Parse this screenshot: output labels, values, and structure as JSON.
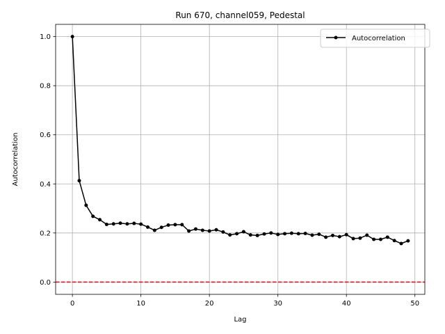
{
  "chart_data": {
    "type": "line",
    "title": "Run 670, channel059, Pedestal",
    "xlabel": "Lag",
    "ylabel": "Autocorrelation",
    "xlim": [
      -2.45,
      51.45
    ],
    "ylim": [
      -0.05,
      1.05
    ],
    "xticks": [
      0,
      10,
      20,
      30,
      40,
      50
    ],
    "yticks": [
      0.0,
      0.2,
      0.4,
      0.6,
      0.8,
      1.0
    ],
    "grid": true,
    "legend_position": "upper right",
    "series": [
      {
        "name": "Autocorrelation",
        "color": "#000000",
        "marker": "circle",
        "x": [
          0,
          1,
          2,
          3,
          4,
          5,
          6,
          7,
          8,
          9,
          10,
          11,
          12,
          13,
          14,
          15,
          16,
          17,
          18,
          19,
          20,
          21,
          22,
          23,
          24,
          25,
          26,
          27,
          28,
          29,
          30,
          31,
          32,
          33,
          34,
          35,
          36,
          37,
          38,
          39,
          40,
          41,
          42,
          43,
          44,
          45,
          46,
          47,
          48,
          49
        ],
        "y": [
          1.0,
          0.413,
          0.313,
          0.268,
          0.254,
          0.235,
          0.237,
          0.24,
          0.237,
          0.239,
          0.236,
          0.224,
          0.211,
          0.223,
          0.232,
          0.234,
          0.234,
          0.208,
          0.216,
          0.211,
          0.208,
          0.213,
          0.204,
          0.192,
          0.197,
          0.205,
          0.192,
          0.19,
          0.196,
          0.2,
          0.194,
          0.197,
          0.199,
          0.197,
          0.198,
          0.191,
          0.195,
          0.183,
          0.19,
          0.185,
          0.193,
          0.177,
          0.179,
          0.191,
          0.174,
          0.174,
          0.183,
          0.169,
          0.157,
          0.168
        ]
      }
    ],
    "reference_lines": [
      {
        "axis": "y",
        "value": 0.0,
        "color": "#ff0000",
        "style": "dashed"
      }
    ]
  }
}
